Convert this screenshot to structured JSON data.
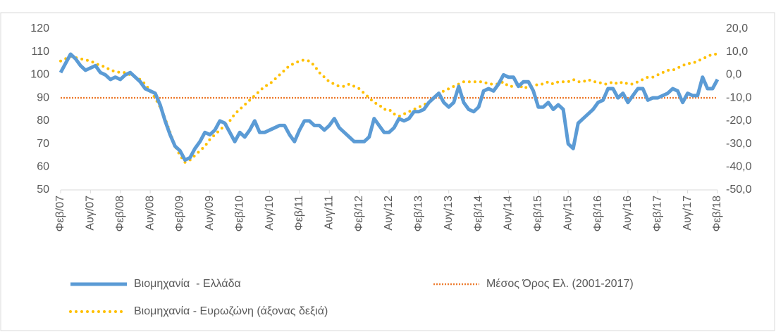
{
  "chart_data": {
    "type": "line",
    "categories": [
      "Φεβ/07",
      null,
      null,
      null,
      null,
      null,
      "Αυγ/07",
      null,
      null,
      null,
      null,
      null,
      "Φεβ/08",
      null,
      null,
      null,
      null,
      null,
      "Αυγ/08",
      null,
      null,
      null,
      null,
      null,
      "Φεβ/09",
      null,
      null,
      null,
      null,
      null,
      "Αυγ/09",
      null,
      null,
      null,
      null,
      null,
      "Φεβ/10",
      null,
      null,
      null,
      null,
      null,
      "Αυγ/10",
      null,
      null,
      null,
      null,
      null,
      "Φεβ/11",
      null,
      null,
      null,
      null,
      null,
      "Αυγ/11",
      null,
      null,
      null,
      null,
      null,
      "Φεβ/12",
      null,
      null,
      null,
      null,
      null,
      "Αυγ/12",
      null,
      null,
      null,
      null,
      null,
      "Φεβ/13",
      null,
      null,
      null,
      null,
      null,
      "Αυγ/13",
      null,
      null,
      null,
      null,
      null,
      "Φεβ/14",
      null,
      null,
      null,
      null,
      null,
      "Αυγ/14",
      null,
      null,
      null,
      null,
      null,
      "Φεβ/15",
      null,
      null,
      null,
      null,
      null,
      "Αυγ/15",
      null,
      null,
      null,
      null,
      null,
      "Φεβ/16",
      null,
      null,
      null,
      null,
      null,
      "Αυγ/16",
      null,
      null,
      null,
      null,
      null,
      "Φεβ/17",
      null,
      null,
      null,
      null,
      null,
      "Αυγ/17",
      null,
      null,
      null,
      null,
      null,
      "Φεβ/18"
    ],
    "series": [
      {
        "name": "Βιομηχανία  - Ελλάδα",
        "color": "#5b9bd5",
        "style": "solid",
        "values": [
          101,
          105,
          109,
          107,
          104,
          102,
          103,
          104,
          101,
          100,
          98,
          99,
          98,
          100,
          101,
          99,
          97,
          94,
          93,
          92,
          87,
          80,
          74,
          69,
          67,
          63,
          64,
          68,
          71,
          75,
          74,
          76,
          80,
          79,
          75,
          71,
          75,
          73,
          76,
          80,
          75,
          75,
          76,
          77,
          78,
          78,
          74,
          71,
          76,
          80,
          80,
          78,
          78,
          76,
          78,
          81,
          77,
          75,
          73,
          71,
          71,
          71,
          73,
          81,
          78,
          75,
          75,
          77,
          81,
          80,
          81,
          84,
          84,
          85,
          88,
          90,
          92,
          88,
          86,
          88,
          95,
          88,
          85,
          84,
          86,
          93,
          94,
          93,
          96,
          100,
          99,
          99,
          95,
          97,
          97,
          93,
          86,
          86,
          88,
          85,
          87,
          85,
          70,
          68,
          79,
          81,
          83,
          85,
          88,
          89,
          94,
          94,
          90,
          92,
          88,
          91,
          94,
          94,
          89,
          90,
          90,
          91,
          92,
          94,
          93,
          88,
          92,
          91,
          91,
          99,
          94,
          94,
          98
        ]
      },
      {
        "name": "Μέσος Όρος Ελ. (2001-2017)",
        "color": "#ed7d31",
        "style": "dotted-thin",
        "values": [
          90,
          90,
          90,
          90,
          90,
          90,
          90,
          90,
          90,
          90,
          90,
          90,
          90,
          90,
          90,
          90,
          90,
          90,
          90,
          90,
          90,
          90,
          90,
          90,
          90,
          90,
          90,
          90,
          90,
          90,
          90,
          90,
          90,
          90,
          90,
          90,
          90,
          90,
          90,
          90,
          90,
          90,
          90,
          90,
          90,
          90,
          90,
          90,
          90,
          90,
          90,
          90,
          90,
          90,
          90,
          90,
          90,
          90,
          90,
          90,
          90,
          90,
          90,
          90,
          90,
          90,
          90,
          90,
          90,
          90,
          90,
          90,
          90,
          90,
          90,
          90,
          90,
          90,
          90,
          90,
          90,
          90,
          90,
          90,
          90,
          90,
          90,
          90,
          90,
          90,
          90,
          90,
          90,
          90,
          90,
          90,
          90,
          90,
          90,
          90,
          90,
          90,
          90,
          90,
          90,
          90,
          90,
          90,
          90,
          90,
          90,
          90,
          90,
          90,
          90,
          90,
          90,
          90,
          90,
          90,
          90,
          90,
          90,
          90,
          90,
          90,
          90,
          90,
          90,
          90,
          90,
          90,
          90
        ]
      },
      {
        "name": "Βιομηχανία - Ευρωζώνη (άξονας δεξιά)",
        "color": "#ffc000",
        "style": "dotted",
        "axis": "y2",
        "values": [
          6,
          7,
          8,
          7.5,
          7,
          6.5,
          6,
          5,
          4,
          3.5,
          2,
          1.5,
          1,
          1,
          0,
          -1,
          -2,
          -4,
          -7,
          -10,
          -14,
          -19,
          -25,
          -31,
          -35,
          -38,
          -37,
          -35,
          -33,
          -31,
          -28,
          -26,
          -24,
          -22,
          -20,
          -17,
          -15,
          -13,
          -11,
          -9,
          -7,
          -5,
          -4,
          -2,
          0,
          2,
          4,
          5,
          6,
          6.5,
          6,
          4,
          1,
          -1,
          -3,
          -4,
          -5,
          -5,
          -4,
          -5,
          -6,
          -8,
          -10,
          -12,
          -13,
          -15,
          -15,
          -17,
          -18,
          -17,
          -16,
          -15,
          -14,
          -13,
          -12,
          -10,
          -8,
          -7,
          -6,
          -5,
          -4,
          -3,
          -3,
          -3,
          -3,
          -3,
          -4,
          -4,
          -4,
          -3,
          -5,
          -5,
          -4,
          -6,
          -5,
          -5,
          -4,
          -4,
          -3,
          -4,
          -3,
          -3,
          -3,
          -2,
          -3,
          -3,
          -2,
          -3,
          -3,
          -4,
          -4,
          -3,
          -4,
          -3,
          -4,
          -4,
          -3,
          -2,
          -1,
          -1,
          0,
          1,
          2,
          2,
          3,
          4,
          5,
          5,
          6,
          7,
          8,
          9,
          9
        ]
      }
    ],
    "ylim": [
      50,
      120
    ],
    "yticks": [
      50,
      60,
      70,
      80,
      90,
      100,
      110,
      120
    ],
    "y2lim": [
      -50,
      20
    ],
    "y2ticks": [
      {
        "value": -50,
        "label": "-50,0"
      },
      {
        "value": -40,
        "label": "-40,0"
      },
      {
        "value": -30,
        "label": "-30,0"
      },
      {
        "value": -20,
        "label": "-20,0"
      },
      {
        "value": -10,
        "label": "-10,0"
      },
      {
        "value": 0,
        "label": "0,0"
      },
      {
        "value": 10,
        "label": "10,0"
      },
      {
        "value": 20,
        "label": "20,0"
      }
    ],
    "grid": false
  }
}
